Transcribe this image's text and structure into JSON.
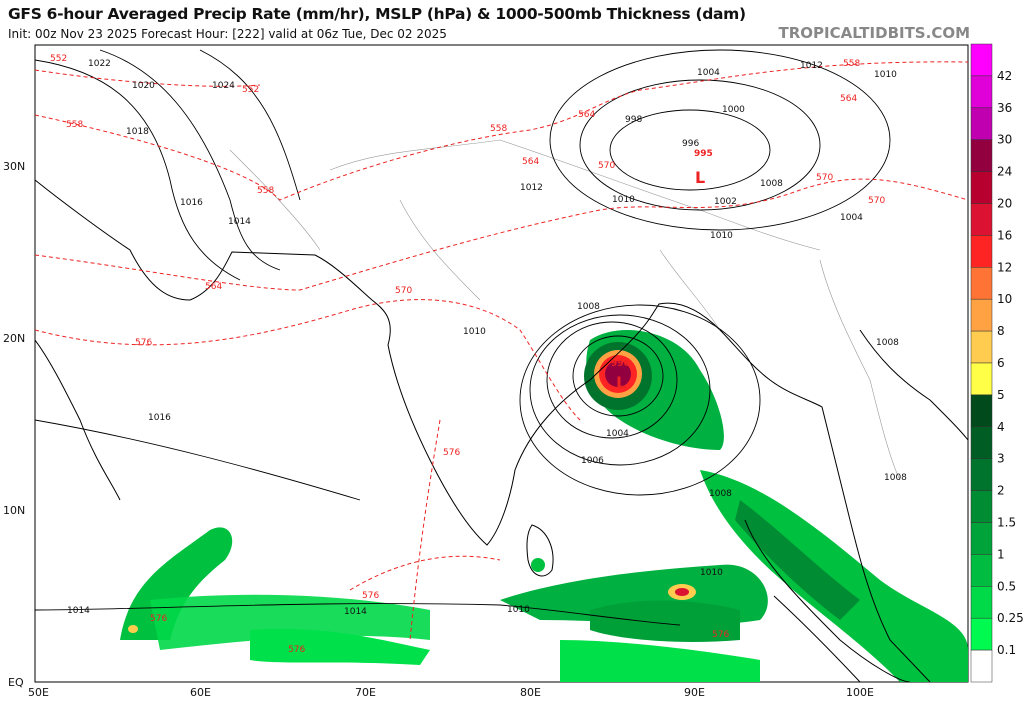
{
  "header": {
    "title": "GFS 6-hour Averaged Precip Rate (mm/hr), MSLP (hPa) & 1000-500mb Thickness (dam)",
    "subtitle": "Init: 00z Nov 23 2025   Forecast Hour: [222]   valid at 06z Tue, Dec 02 2025",
    "brand": "TROPICALTIDBITS.COM"
  },
  "axes": {
    "lon_labels": [
      "50E",
      "60E",
      "70E",
      "80E",
      "90E",
      "100E"
    ],
    "lat_labels": [
      "EQ",
      "10N",
      "20N",
      "30N"
    ]
  },
  "colorbar": {
    "labels": [
      "42",
      "36",
      "30",
      "24",
      "20",
      "16",
      "12",
      "10",
      "8",
      "6",
      "5",
      "4",
      "3",
      "2",
      "1.5",
      "1",
      "0.5",
      "0.25",
      "0.1"
    ],
    "colors": [
      "#ff00ff",
      "#e000d8",
      "#c000b0",
      "#92003f",
      "#b8002e",
      "#dc1232",
      "#ff2424",
      "#ff7434",
      "#ffa244",
      "#ffcc50",
      "#ffff48",
      "#004a1c",
      "#005e24",
      "#00742c",
      "#008c32",
      "#00a23a",
      "#00bc40",
      "#00da48",
      "#00fa50",
      "#ffffff"
    ]
  },
  "mslp_labels": [
    "1022",
    "1020",
    "1018",
    "1016",
    "1014",
    "1024",
    "1012",
    "1010",
    "1008",
    "1016",
    "1014",
    "1010",
    "1004",
    "1000",
    "998",
    "996",
    "995",
    "1002",
    "1010",
    "1008",
    "1004",
    "1012",
    "1010",
    "1008",
    "1004",
    "1006",
    "1008",
    "1008",
    "1010",
    "1010",
    "1014",
    "996"
  ],
  "thickness_labels": [
    "552",
    "552",
    "558",
    "558",
    "564",
    "570",
    "558",
    "564",
    "564",
    "570",
    "570",
    "564",
    "558",
    "570",
    "576",
    "576",
    "576",
    "576",
    "576",
    "576"
  ],
  "low_symbols": [
    "L",
    "L"
  ]
}
